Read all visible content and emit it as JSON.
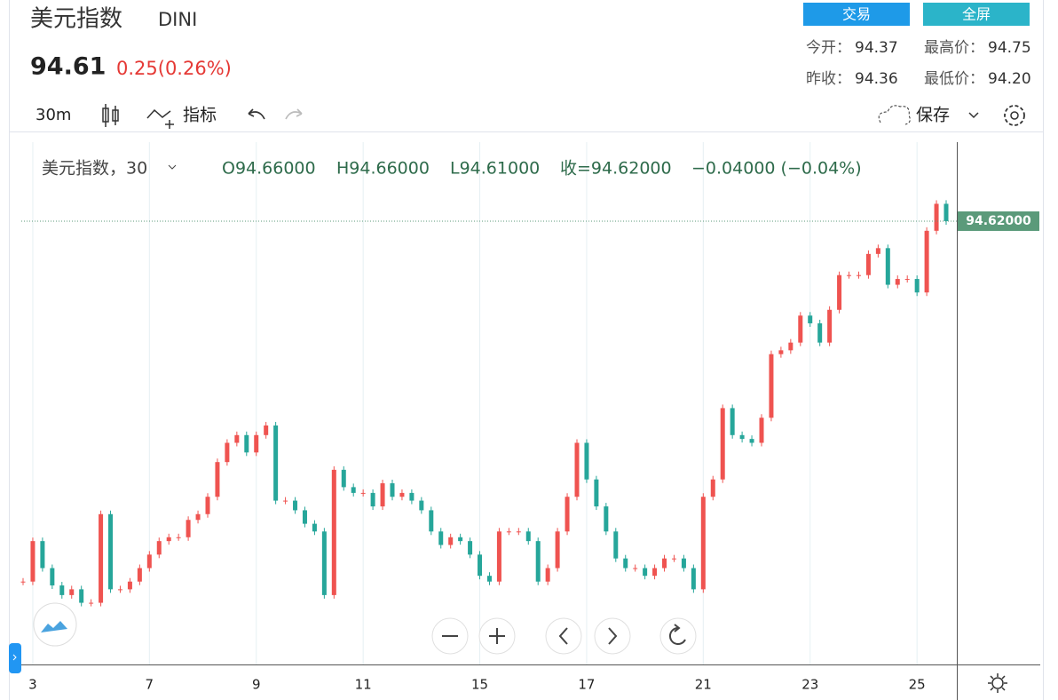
{
  "header": {
    "title": "美元指数",
    "symbol": "DINI",
    "price": "94.61",
    "change": "0.25(0.26%)",
    "buttons": [
      "交易",
      "全屏"
    ],
    "stats": [
      [
        "今开：",
        "94.37"
      ],
      [
        "最高价：",
        "94.75"
      ],
      [
        "昨收：",
        "94.36"
      ],
      [
        "最低价：",
        "94.20"
      ]
    ]
  },
  "toolbar": {
    "interval": "30m",
    "indicators": "指标",
    "save": "保存"
  },
  "legend": {
    "symbol": "美元指数，30",
    "open": "O94.66000",
    "high": "H94.66000",
    "low": "L94.61000",
    "close": "收=94.62000",
    "change": "−0.04000 (−0.04%)"
  },
  "chart_data": {
    "type": "candlestick",
    "values": [
      92.75,
      92.96,
      92.82,
      92.73,
      92.68,
      92.71,
      92.64,
      92.64,
      93.1,
      92.71,
      92.71,
      92.75,
      92.82,
      92.89,
      92.96,
      92.98,
      92.98,
      93.07,
      93.1,
      93.19,
      93.37,
      93.47,
      93.51,
      93.42,
      93.51,
      93.56,
      93.17,
      93.17,
      93.12,
      93.05,
      93.01,
      92.68,
      93.33,
      93.24,
      93.21,
      93.21,
      93.14,
      93.26,
      93.19,
      93.21,
      93.17,
      93.12,
      93.01,
      92.94,
      92.98,
      92.96,
      92.89,
      92.78,
      92.75,
      93.01,
      93.01,
      93.01,
      92.96,
      92.75,
      92.82,
      93.01,
      93.19,
      93.47,
      93.28,
      93.14,
      93.01,
      92.87,
      92.82,
      92.82,
      92.78,
      92.82,
      92.87,
      92.87,
      92.82,
      92.71,
      93.19,
      93.28,
      93.65,
      93.51,
      93.49,
      93.47,
      93.6,
      93.93,
      93.95,
      93.99,
      94.13,
      94.09,
      93.99,
      94.16,
      94.34,
      94.34,
      94.34,
      94.45,
      94.48,
      94.29,
      94.32,
      94.32,
      94.25,
      94.57,
      94.71,
      94.62
    ],
    "up_color": "#ef5350",
    "down_color": "#26a69a",
    "xticks": [
      {
        "value": 1,
        "label": "3"
      },
      {
        "value": 13,
        "label": "7"
      },
      {
        "value": 24,
        "label": "9"
      },
      {
        "value": 35,
        "label": "11"
      },
      {
        "value": 47,
        "label": "15"
      },
      {
        "value": 58,
        "label": "17"
      },
      {
        "value": 70,
        "label": "21"
      },
      {
        "value": 81,
        "label": "23"
      },
      {
        "value": 92,
        "label": "25"
      }
    ],
    "ylim": [
      92.32,
      95.03
    ],
    "last_price": {
      "value": 94.62,
      "label": "94.62000"
    },
    "grid": true
  }
}
